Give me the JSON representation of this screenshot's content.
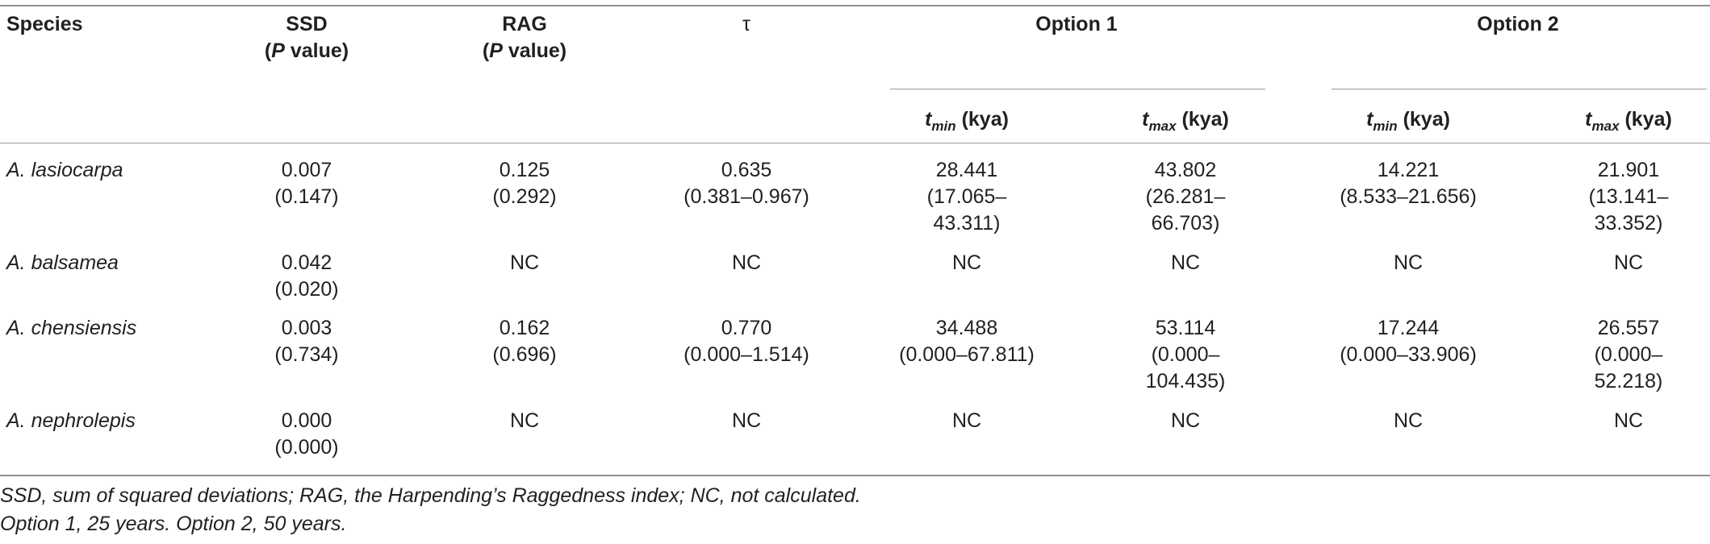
{
  "header": {
    "species": "Species",
    "ssd_line1": "SSD",
    "ssd_p": "P",
    "ssd_value": " value)",
    "rag_line1": "RAG",
    "rag_p": "P",
    "rag_value": " value)",
    "open_paren": "(",
    "tau": "τ",
    "option1": "Option 1",
    "option2": "Option 2",
    "tmin_t": "t",
    "tmin_sub": "min",
    "tmax_t": "t",
    "tmax_sub": "max",
    "kya": " (kya)"
  },
  "rows": [
    {
      "species": "A. lasiocarpa",
      "ssd": "0.007\n(0.147)",
      "rag": "0.125\n(0.292)",
      "tau": "0.635\n(0.381–0.967)",
      "o1_tmin": "28.441\n(17.065–\n43.311)",
      "o1_tmax": "43.802\n(26.281–\n66.703)",
      "o2_tmin": "14.221\n(8.533–21.656)",
      "o2_tmax": "21.901\n(13.141–\n33.352)"
    },
    {
      "species": "A. balsamea",
      "ssd": "0.042\n(0.020)",
      "rag": "NC",
      "tau": "NC",
      "o1_tmin": "NC",
      "o1_tmax": "NC",
      "o2_tmin": "NC",
      "o2_tmax": "NC"
    },
    {
      "species": "A. chensiensis",
      "ssd": "0.003\n(0.734)",
      "rag": "0.162\n(0.696)",
      "tau": "0.770\n(0.000–1.514)",
      "o1_tmin": "34.488\n(0.000–67.811)",
      "o1_tmax": "53.114\n(0.000–\n104.435)",
      "o2_tmin": "17.244\n(0.000–33.906)",
      "o2_tmax": "26.557\n(0.000–52.218)"
    },
    {
      "species": "A. nephrolepis",
      "ssd": "0.000\n(0.000)",
      "rag": "NC",
      "tau": "NC",
      "o1_tmin": "NC",
      "o1_tmax": "NC",
      "o2_tmin": "NC",
      "o2_tmax": "NC"
    }
  ],
  "footnotes": [
    "SSD, sum of squared deviations; RAG, the Harpending’s Raggedness index; NC, not calculated.",
    "Option 1, 25 years. Option 2, 50 years."
  ]
}
